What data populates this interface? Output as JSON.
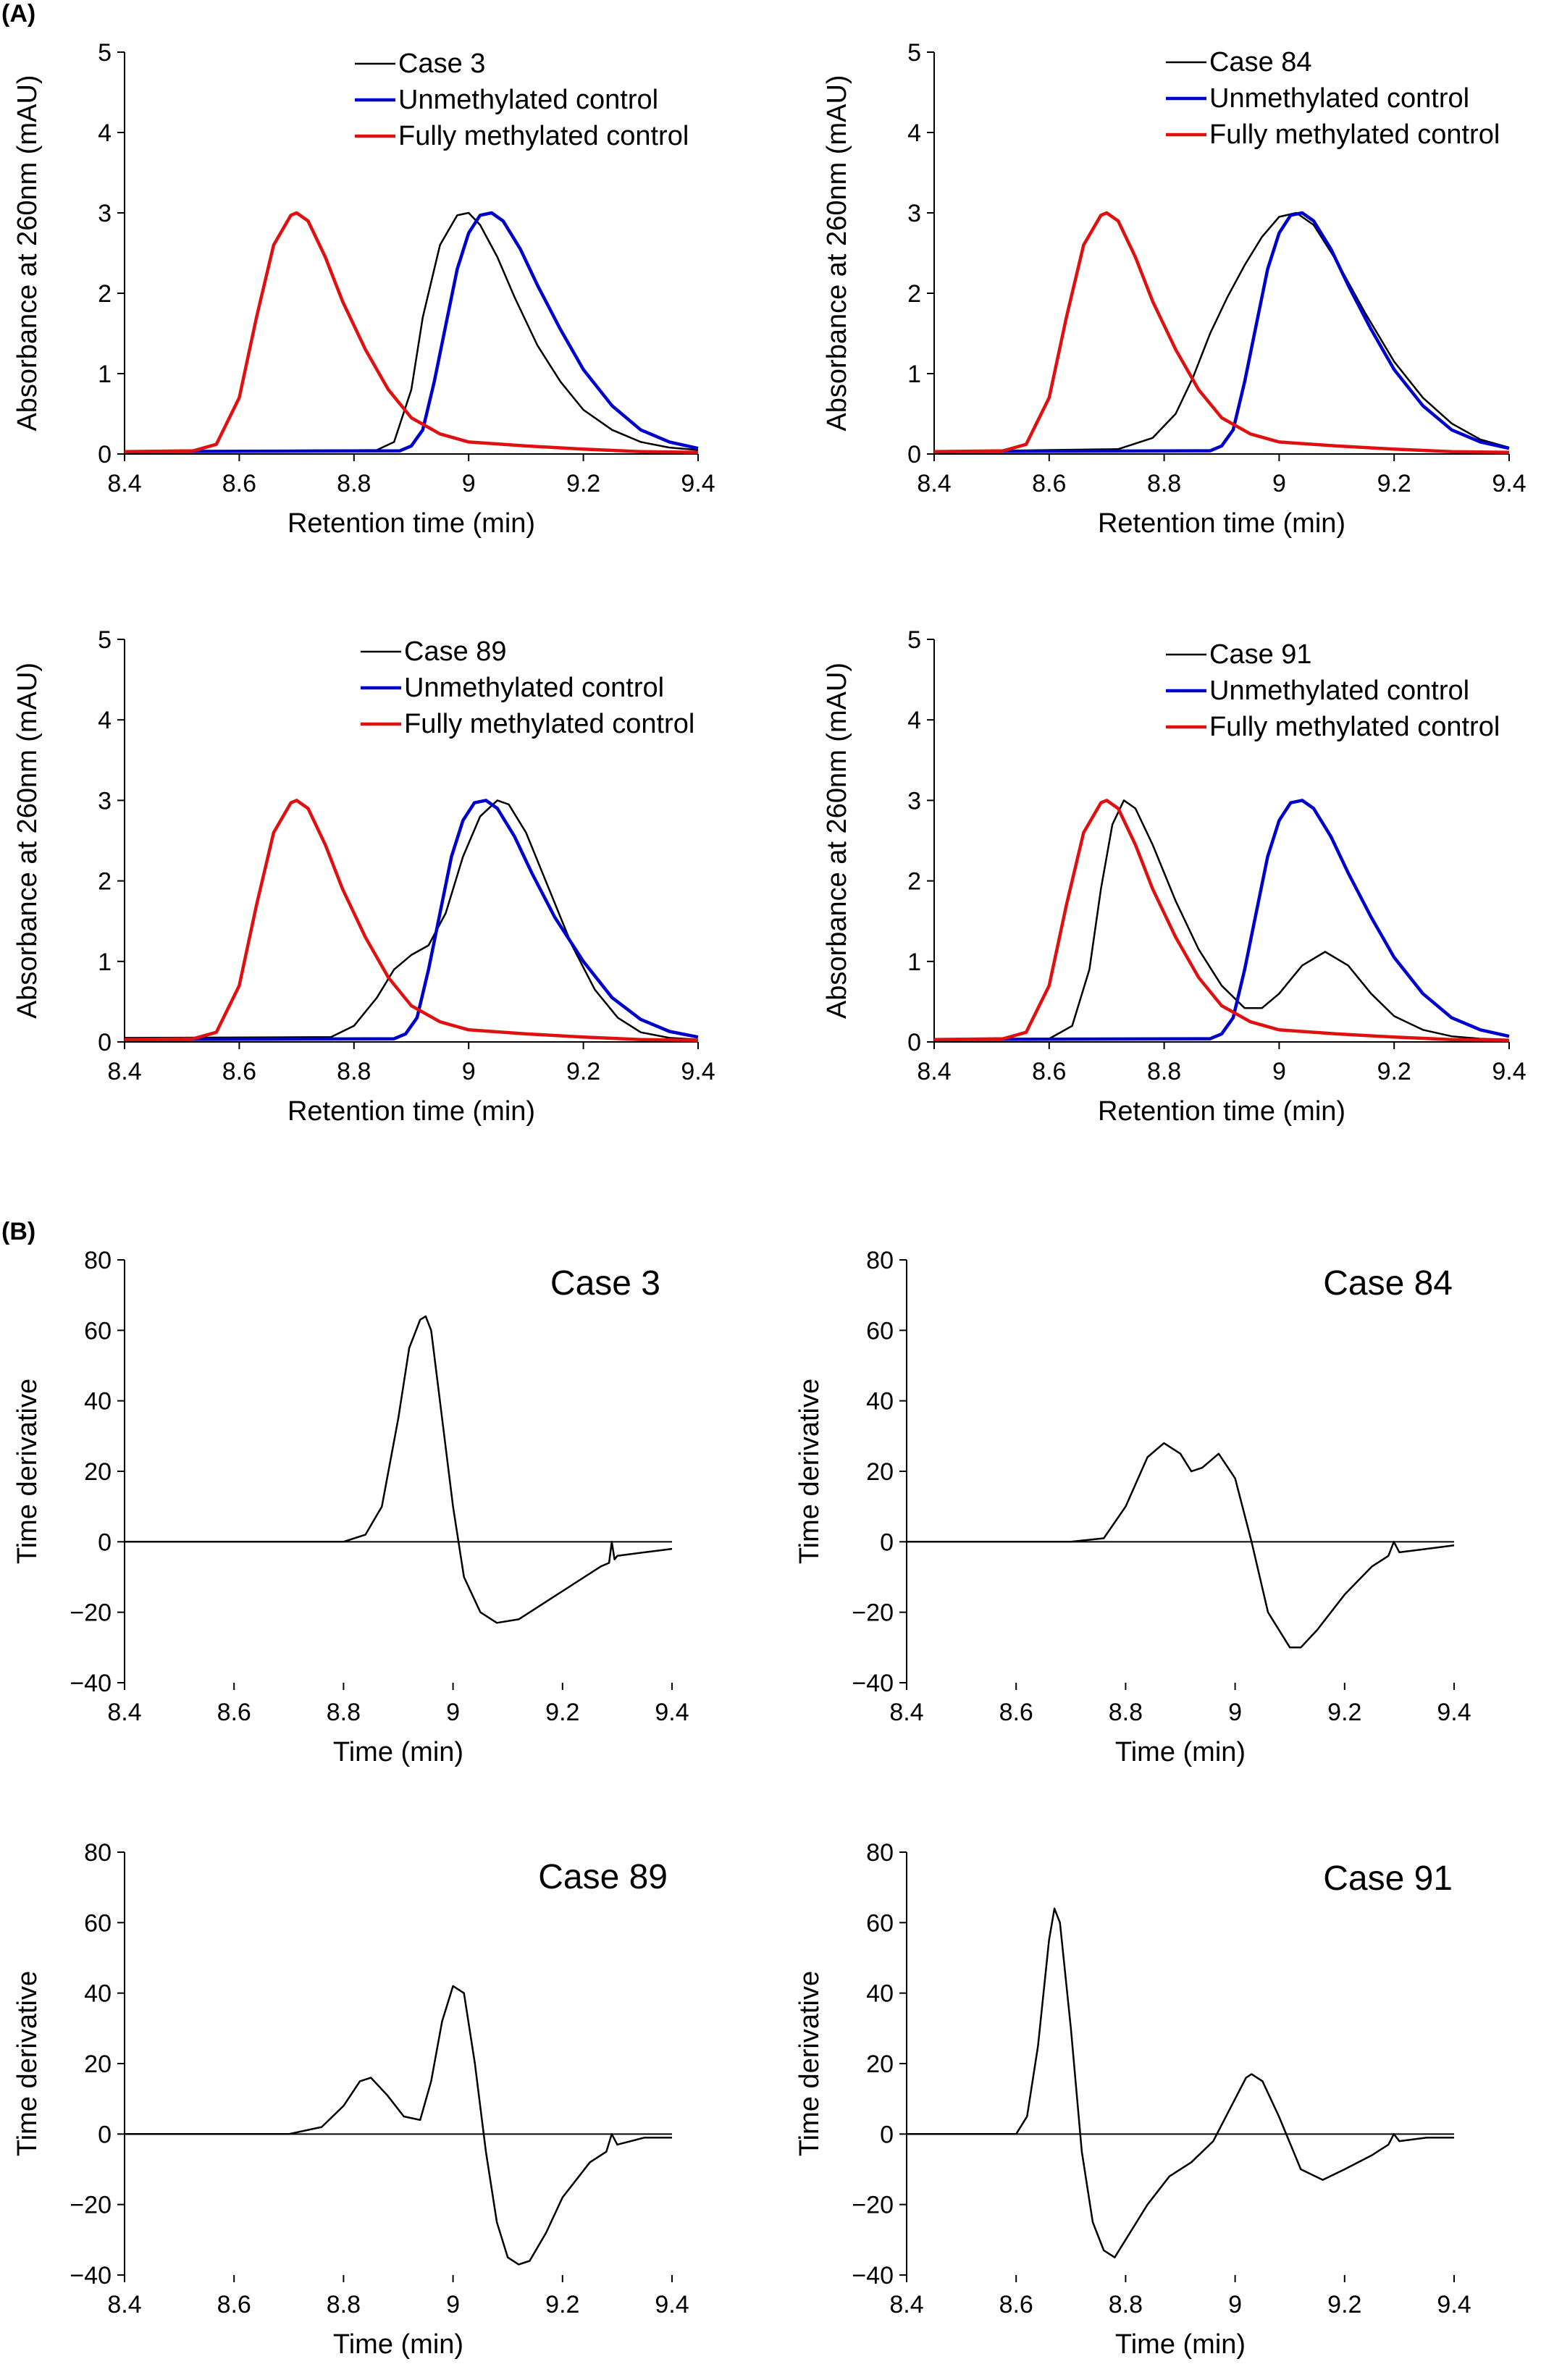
{
  "panel_labels": [
    "(A)",
    "(B)"
  ],
  "colors": {
    "case": "#000000",
    "unmethylated": "#0000CC",
    "methylated": "#E01010"
  },
  "chart_data": [
    {
      "type": "line",
      "panel": "A",
      "title": "",
      "xlabel": "Retention time (min)",
      "ylabel": "Absorbance at 260nm (mAU)",
      "xlim": [
        8.4,
        9.4
      ],
      "ylim": [
        0,
        5
      ],
      "xticks": [
        "8.4",
        "8.6",
        "8.8",
        "9",
        "9.2",
        "9.4"
      ],
      "yticks": [
        "0",
        "1",
        "2",
        "3",
        "4",
        "5"
      ],
      "legend_position": "top-right",
      "series": [
        {
          "name": "Case 3",
          "color": "#000000",
          "x": [
            8.4,
            8.84,
            8.87,
            8.9,
            8.92,
            8.95,
            8.98,
            9.0,
            9.02,
            9.05,
            9.08,
            9.12,
            9.16,
            9.2,
            9.25,
            9.3,
            9.35,
            9.4
          ],
          "y": [
            0.03,
            0.05,
            0.15,
            0.8,
            1.7,
            2.6,
            2.97,
            3.0,
            2.85,
            2.45,
            1.95,
            1.35,
            0.9,
            0.55,
            0.3,
            0.15,
            0.08,
            0.05
          ]
        },
        {
          "name": "Unmethylated control",
          "color": "#0000CC",
          "x": [
            8.4,
            8.88,
            8.9,
            8.92,
            8.94,
            8.96,
            8.98,
            9.0,
            9.02,
            9.04,
            9.06,
            9.09,
            9.12,
            9.16,
            9.2,
            9.25,
            9.3,
            9.35,
            9.4
          ],
          "y": [
            0.03,
            0.04,
            0.1,
            0.3,
            0.9,
            1.6,
            2.3,
            2.75,
            2.97,
            3.0,
            2.9,
            2.55,
            2.1,
            1.55,
            1.05,
            0.6,
            0.3,
            0.15,
            0.07
          ]
        },
        {
          "name": "Fully methylated control",
          "color": "#E01010",
          "x": [
            8.4,
            8.52,
            8.56,
            8.6,
            8.63,
            8.66,
            8.69,
            8.7,
            8.72,
            8.75,
            8.78,
            8.82,
            8.86,
            8.9,
            8.95,
            9.0,
            9.1,
            9.2,
            9.3,
            9.4
          ],
          "y": [
            0.03,
            0.04,
            0.12,
            0.7,
            1.7,
            2.6,
            2.97,
            3.0,
            2.9,
            2.45,
            1.9,
            1.3,
            0.8,
            0.45,
            0.25,
            0.15,
            0.1,
            0.06,
            0.03,
            0.02
          ]
        }
      ]
    },
    {
      "type": "line",
      "panel": "A",
      "title": "",
      "xlabel": "Retention time (min)",
      "ylabel": "Absorbance at 260nm (mAU)",
      "xlim": [
        8.4,
        9.4
      ],
      "ylim": [
        0,
        5
      ],
      "xticks": [
        "8.4",
        "8.6",
        "8.8",
        "9",
        "9.2",
        "9.4"
      ],
      "yticks": [
        "0",
        "1",
        "2",
        "3",
        "4",
        "5"
      ],
      "legend_position": "top-right",
      "series": [
        {
          "name": "Case 84",
          "color": "#000000",
          "x": [
            8.4,
            8.72,
            8.78,
            8.82,
            8.85,
            8.88,
            8.91,
            8.94,
            8.97,
            9.0,
            9.03,
            9.06,
            9.1,
            9.15,
            9.2,
            9.25,
            9.3,
            9.35,
            9.4
          ],
          "y": [
            0.03,
            0.06,
            0.2,
            0.5,
            0.95,
            1.5,
            1.95,
            2.35,
            2.7,
            2.95,
            3.0,
            2.85,
            2.4,
            1.75,
            1.15,
            0.7,
            0.38,
            0.18,
            0.08
          ]
        },
        {
          "name": "Unmethylated control",
          "color": "#0000CC",
          "x": [
            8.4,
            8.88,
            8.9,
            8.92,
            8.94,
            8.96,
            8.98,
            9.0,
            9.02,
            9.04,
            9.06,
            9.09,
            9.12,
            9.16,
            9.2,
            9.25,
            9.3,
            9.35,
            9.4
          ],
          "y": [
            0.03,
            0.04,
            0.1,
            0.3,
            0.9,
            1.6,
            2.3,
            2.75,
            2.97,
            3.0,
            2.9,
            2.55,
            2.1,
            1.55,
            1.05,
            0.6,
            0.3,
            0.15,
            0.07
          ]
        },
        {
          "name": "Fully methylated control",
          "color": "#E01010",
          "x": [
            8.4,
            8.52,
            8.56,
            8.6,
            8.63,
            8.66,
            8.69,
            8.7,
            8.72,
            8.75,
            8.78,
            8.82,
            8.86,
            8.9,
            8.95,
            9.0,
            9.1,
            9.2,
            9.3,
            9.4
          ],
          "y": [
            0.03,
            0.04,
            0.12,
            0.7,
            1.7,
            2.6,
            2.97,
            3.0,
            2.9,
            2.45,
            1.9,
            1.3,
            0.8,
            0.45,
            0.25,
            0.15,
            0.1,
            0.06,
            0.03,
            0.02
          ]
        }
      ]
    },
    {
      "type": "line",
      "panel": "A",
      "title": "",
      "xlabel": "Retention time (min)",
      "ylabel": "Absorbance at 260nm (mAU)",
      "xlim": [
        8.4,
        9.4
      ],
      "ylim": [
        0,
        5
      ],
      "xticks": [
        "8.4",
        "8.6",
        "8.8",
        "9",
        "9.2",
        "9.4"
      ],
      "yticks": [
        "0",
        "1",
        "2",
        "3",
        "4",
        "5"
      ],
      "legend_position": "top-right",
      "series": [
        {
          "name": "Case 89",
          "color": "#000000",
          "x": [
            8.4,
            8.76,
            8.8,
            8.84,
            8.87,
            8.9,
            8.93,
            8.96,
            8.99,
            9.02,
            9.05,
            9.07,
            9.1,
            9.14,
            9.18,
            9.22,
            9.26,
            9.3,
            9.35,
            9.4
          ],
          "y": [
            0.05,
            0.06,
            0.2,
            0.55,
            0.9,
            1.08,
            1.2,
            1.6,
            2.3,
            2.8,
            3.0,
            2.95,
            2.6,
            1.9,
            1.2,
            0.65,
            0.3,
            0.12,
            0.05,
            0.03
          ]
        },
        {
          "name": "Unmethylated control",
          "color": "#0000CC",
          "x": [
            8.4,
            8.87,
            8.89,
            8.91,
            8.93,
            8.95,
            8.97,
            8.99,
            9.01,
            9.03,
            9.05,
            9.08,
            9.11,
            9.15,
            9.2,
            9.25,
            9.3,
            9.35,
            9.4
          ],
          "y": [
            0.03,
            0.04,
            0.1,
            0.3,
            0.9,
            1.6,
            2.3,
            2.75,
            2.97,
            3.0,
            2.9,
            2.55,
            2.1,
            1.55,
            1.0,
            0.55,
            0.28,
            0.13,
            0.06
          ]
        },
        {
          "name": "Fully methylated control",
          "color": "#E01010",
          "x": [
            8.4,
            8.52,
            8.56,
            8.6,
            8.63,
            8.66,
            8.69,
            8.7,
            8.72,
            8.75,
            8.78,
            8.82,
            8.86,
            8.9,
            8.95,
            9.0,
            9.1,
            9.2,
            9.3,
            9.4
          ],
          "y": [
            0.03,
            0.04,
            0.12,
            0.7,
            1.7,
            2.6,
            2.97,
            3.0,
            2.9,
            2.45,
            1.9,
            1.3,
            0.8,
            0.45,
            0.25,
            0.15,
            0.1,
            0.06,
            0.03,
            0.02
          ]
        }
      ]
    },
    {
      "type": "line",
      "panel": "A",
      "title": "",
      "xlabel": "Retention time (min)",
      "ylabel": "Absorbance at 260nm (mAU)",
      "xlim": [
        8.4,
        9.4
      ],
      "ylim": [
        0,
        5
      ],
      "xticks": [
        "8.4",
        "8.6",
        "8.8",
        "9",
        "9.2",
        "9.4"
      ],
      "yticks": [
        "0",
        "1",
        "2",
        "3",
        "4",
        "5"
      ],
      "legend_position": "top-right",
      "series": [
        {
          "name": "Case 91",
          "color": "#000000",
          "x": [
            8.4,
            8.6,
            8.64,
            8.67,
            8.69,
            8.71,
            8.73,
            8.75,
            8.78,
            8.82,
            8.86,
            8.9,
            8.94,
            8.97,
            9.0,
            9.04,
            9.08,
            9.12,
            9.16,
            9.2,
            9.25,
            9.3,
            9.35,
            9.4
          ],
          "y": [
            0.03,
            0.04,
            0.2,
            0.9,
            1.9,
            2.7,
            3.0,
            2.9,
            2.45,
            1.75,
            1.15,
            0.7,
            0.42,
            0.42,
            0.6,
            0.95,
            1.12,
            0.95,
            0.6,
            0.32,
            0.15,
            0.07,
            0.04,
            0.03
          ]
        },
        {
          "name": "Unmethylated control",
          "color": "#0000CC",
          "x": [
            8.4,
            8.88,
            8.9,
            8.92,
            8.94,
            8.96,
            8.98,
            9.0,
            9.02,
            9.04,
            9.06,
            9.09,
            9.12,
            9.16,
            9.2,
            9.25,
            9.3,
            9.35,
            9.4
          ],
          "y": [
            0.03,
            0.04,
            0.1,
            0.3,
            0.9,
            1.6,
            2.3,
            2.75,
            2.97,
            3.0,
            2.9,
            2.55,
            2.1,
            1.55,
            1.05,
            0.6,
            0.3,
            0.15,
            0.07
          ]
        },
        {
          "name": "Fully methylated control",
          "color": "#E01010",
          "x": [
            8.4,
            8.52,
            8.56,
            8.6,
            8.63,
            8.66,
            8.69,
            8.7,
            8.72,
            8.75,
            8.78,
            8.82,
            8.86,
            8.9,
            8.95,
            9.0,
            9.1,
            9.2,
            9.3,
            9.4
          ],
          "y": [
            0.03,
            0.04,
            0.12,
            0.7,
            1.7,
            2.6,
            2.97,
            3.0,
            2.9,
            2.45,
            1.9,
            1.3,
            0.8,
            0.45,
            0.25,
            0.15,
            0.1,
            0.06,
            0.03,
            0.02
          ]
        }
      ]
    },
    {
      "type": "line",
      "panel": "B",
      "title": "Case 3",
      "xlabel": "Time (min)",
      "ylabel": "Time derivative",
      "xlim": [
        8.4,
        9.4
      ],
      "ylim": [
        -40,
        80
      ],
      "xticks": [
        "8.4",
        "8.6",
        "8.8",
        "9",
        "9.2",
        "9.4"
      ],
      "yticks": [
        "−40",
        "−20",
        "0",
        "20",
        "40",
        "60",
        "80"
      ],
      "series": [
        {
          "color": "#000000",
          "x": [
            8.4,
            8.5,
            8.6,
            8.7,
            8.8,
            8.84,
            8.87,
            8.9,
            8.92,
            8.94,
            8.95,
            8.96,
            8.98,
            9.0,
            9.02,
            9.05,
            9.08,
            9.12,
            9.16,
            9.2,
            9.24,
            9.27,
            9.285,
            9.29,
            9.295,
            9.3,
            9.35,
            9.4
          ],
          "y": [
            0,
            0,
            0,
            0,
            0,
            2,
            10,
            35,
            55,
            63,
            64,
            60,
            35,
            10,
            -10,
            -20,
            -23,
            -22,
            -18,
            -14,
            -10,
            -7,
            -6,
            0,
            -5,
            -4,
            -3,
            -2
          ]
        }
      ]
    },
    {
      "type": "line",
      "panel": "B",
      "title": "Case 84",
      "xlabel": "Time (min)",
      "ylabel": "Time derivative",
      "xlim": [
        8.4,
        9.4
      ],
      "ylim": [
        -40,
        80
      ],
      "xticks": [
        "8.4",
        "8.6",
        "8.8",
        "9",
        "9.2",
        "9.4"
      ],
      "yticks": [
        "−40",
        "−20",
        "0",
        "20",
        "40",
        "60",
        "80"
      ],
      "series": [
        {
          "color": "#000000",
          "x": [
            8.4,
            8.5,
            8.6,
            8.7,
            8.76,
            8.8,
            8.84,
            8.87,
            8.9,
            8.92,
            8.94,
            8.97,
            9.0,
            9.03,
            9.06,
            9.1,
            9.12,
            9.15,
            9.2,
            9.25,
            9.28,
            9.29,
            9.3,
            9.35,
            9.4
          ],
          "y": [
            0,
            0,
            0,
            0,
            1,
            10,
            24,
            28,
            25,
            20,
            21,
            25,
            18,
            0,
            -20,
            -30,
            -30,
            -25,
            -15,
            -7,
            -4,
            0,
            -3,
            -2,
            -1
          ]
        }
      ]
    },
    {
      "type": "line",
      "panel": "B",
      "title": "Case 89",
      "xlabel": "Time (min)",
      "ylabel": "Time derivative",
      "xlim": [
        8.4,
        9.4
      ],
      "ylim": [
        -40,
        80
      ],
      "xticks": [
        "8.4",
        "8.6",
        "8.8",
        "9",
        "9.2",
        "9.4"
      ],
      "yticks": [
        "−40",
        "−20",
        "0",
        "20",
        "40",
        "60",
        "80"
      ],
      "series": [
        {
          "color": "#000000",
          "x": [
            8.4,
            8.5,
            8.6,
            8.7,
            8.76,
            8.8,
            8.83,
            8.85,
            8.88,
            8.91,
            8.94,
            8.96,
            8.98,
            9.0,
            9.02,
            9.04,
            9.06,
            9.08,
            9.1,
            9.12,
            9.14,
            9.17,
            9.2,
            9.25,
            9.28,
            9.29,
            9.3,
            9.35,
            9.4
          ],
          "y": [
            0,
            0,
            0,
            0,
            2,
            8,
            15,
            16,
            11,
            5,
            4,
            15,
            32,
            42,
            40,
            20,
            -5,
            -25,
            -35,
            -37,
            -36,
            -28,
            -18,
            -8,
            -5,
            0,
            -3,
            -1,
            -1
          ]
        }
      ]
    },
    {
      "type": "line",
      "panel": "B",
      "title": "Case 91",
      "xlabel": "Time (min)",
      "ylabel": "Time derivative",
      "xlim": [
        8.4,
        9.4
      ],
      "ylim": [
        -40,
        80
      ],
      "xticks": [
        "8.4",
        "8.6",
        "8.8",
        "9",
        "9.2",
        "9.4"
      ],
      "yticks": [
        "−40",
        "−20",
        "0",
        "20",
        "40",
        "60",
        "80"
      ],
      "series": [
        {
          "color": "#000000",
          "x": [
            8.4,
            8.5,
            8.6,
            8.62,
            8.64,
            8.66,
            8.67,
            8.68,
            8.7,
            8.72,
            8.74,
            8.76,
            8.78,
            8.8,
            8.84,
            8.88,
            8.92,
            8.96,
            9.0,
            9.02,
            9.03,
            9.05,
            9.08,
            9.12,
            9.16,
            9.2,
            9.25,
            9.28,
            9.29,
            9.3,
            9.35,
            9.4
          ],
          "y": [
            0,
            0,
            0,
            5,
            25,
            55,
            64,
            60,
            30,
            -5,
            -25,
            -33,
            -35,
            -30,
            -20,
            -12,
            -8,
            -2,
            10,
            16,
            17,
            15,
            5,
            -10,
            -13,
            -10,
            -6,
            -3,
            0,
            -2,
            -1,
            -1
          ]
        }
      ]
    }
  ]
}
